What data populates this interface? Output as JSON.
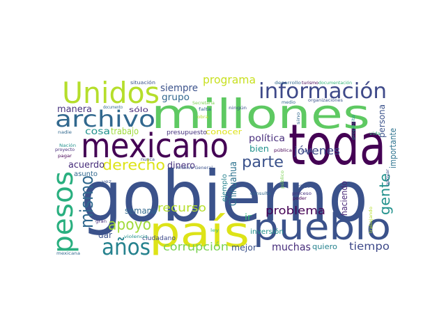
{
  "word_cloud": {
    "background": "#ffffff",
    "words": [
      {
        "text": "gobierno",
        "color": "#3b528b"
      },
      {
        "text": "toda",
        "color": "#440154"
      },
      {
        "text": "millones",
        "color": "#5ec962"
      },
      {
        "text": "país",
        "color": "#dde318"
      },
      {
        "text": "pueblo",
        "color": "#3b528b"
      },
      {
        "text": "mexicano",
        "color": "#440154"
      },
      {
        "text": "Unidos",
        "color": "#b5de2b"
      },
      {
        "text": "información",
        "color": "#3e4989"
      },
      {
        "text": "pesos",
        "color": "#29af7f"
      },
      {
        "text": "archivo",
        "color": "#31688e"
      },
      {
        "text": "años",
        "color": "#26828e"
      },
      {
        "text": "mismo",
        "color": "#31688e"
      },
      {
        "text": "apoyo",
        "color": "#a0da39"
      },
      {
        "text": "derecho",
        "color": "#dde318"
      },
      {
        "text": "parte",
        "color": "#3b528b"
      },
      {
        "text": "gente",
        "color": "#21918c"
      },
      {
        "text": "programa",
        "color": "#c8e020"
      },
      {
        "text": "corrupción",
        "color": "#7ad151"
      },
      {
        "text": "problema",
        "color": "#440154"
      },
      {
        "text": "jóvenes",
        "color": "#3e4989"
      },
      {
        "text": "recurso",
        "color": "#b5de2b"
      },
      {
        "text": "muchas",
        "color": "#472d7b"
      },
      {
        "text": "tiempo",
        "color": "#3e4989"
      },
      {
        "text": "Chihuahua",
        "color": "#2c728e"
      },
      {
        "text": "siempre",
        "color": "#3b528b"
      },
      {
        "text": "cosa",
        "color": "#21918c"
      },
      {
        "text": "trabajo",
        "color": "#9fda3a"
      },
      {
        "text": "manera",
        "color": "#46327e"
      },
      {
        "text": "grupo",
        "color": "#31688e"
      },
      {
        "text": "política",
        "color": "#472d7b"
      },
      {
        "text": "persona",
        "color": "#3b528b"
      },
      {
        "text": "importante",
        "color": "#2c728e"
      },
      {
        "text": "haciendo",
        "color": "#482878"
      },
      {
        "text": "acuerdo",
        "color": "#472d7b"
      },
      {
        "text": "dinero",
        "color": "#46327e"
      },
      {
        "text": "semana",
        "color": "#31688e"
      },
      {
        "text": "bien",
        "color": "#21918c"
      },
      {
        "text": "dar",
        "color": "#3b528b"
      },
      {
        "text": "mejor",
        "color": "#3b528b"
      },
      {
        "text": "quiero",
        "color": "#26828e"
      },
      {
        "text": "ir",
        "color": "#35b779"
      },
      {
        "text": "sólo",
        "color": "#482878"
      },
      {
        "text": "conocer",
        "color": "#dde318"
      },
      {
        "text": "presupuesto",
        "color": "#46327e"
      },
      {
        "text": "ejemplo",
        "color": "#26828e"
      },
      {
        "text": "inversión",
        "color": "#21918c"
      },
      {
        "text": "ciudadano",
        "color": "#3e4989"
      },
      {
        "text": "asunto",
        "color": "#31688e"
      },
      {
        "text": "situación",
        "color": "#3b528b"
      },
      {
        "text": "documento",
        "color": "#31688e"
      },
      {
        "text": "Secretaría",
        "color": "#7ad151"
      },
      {
        "text": "falta",
        "color": "#31688e"
      },
      {
        "text": "obra",
        "color": "#b5de2b"
      },
      {
        "text": "ningún",
        "color": "#3b528b"
      },
      {
        "text": "desarrollo",
        "color": "#31688e"
      },
      {
        "text": "turismo",
        "color": "#440154"
      },
      {
        "text": "documentación",
        "color": "#35b779"
      },
      {
        "text": "organizaciones",
        "color": "#3b528b"
      },
      {
        "text": "medio",
        "color": "#31688e"
      },
      {
        "text": "sino",
        "color": "#31688e"
      },
      {
        "text": "propósito",
        "color": "#21918c"
      },
      {
        "text": "vida",
        "color": "#35b779"
      },
      {
        "text": "cada",
        "color": "#3b528b"
      },
      {
        "text": "nadie",
        "color": "#31688e"
      },
      {
        "text": "Nación",
        "color": "#21918c"
      },
      {
        "text": "proyecto",
        "color": "#472d7b"
      },
      {
        "text": "pagar",
        "color": "#440154"
      },
      {
        "text": "nunca",
        "color": "#3b528b"
      },
      {
        "text": "Archivo General",
        "color": "#3b528b"
      },
      {
        "text": "pública",
        "color": "#440154"
      },
      {
        "text": "público",
        "color": "#7ad151"
      },
      {
        "text": "incluso",
        "color": "#3b528b"
      },
      {
        "text": "proceso",
        "color": "#46327e"
      },
      {
        "text": "poder",
        "color": "#440154"
      },
      {
        "text": "consulta",
        "color": "#31688e"
      },
      {
        "text": "vez",
        "color": "#3b528b"
      },
      {
        "text": "gran",
        "color": "#472d7b"
      },
      {
        "text": "violencia",
        "color": "#21918c"
      },
      {
        "text": "mexicana",
        "color": "#31688e"
      },
      {
        "text": "ley",
        "color": "#35b779"
      },
      {
        "text": "trabajando",
        "color": "#b5de2b"
      },
      {
        "text": "apoyar",
        "color": "#3b528b"
      }
    ]
  }
}
